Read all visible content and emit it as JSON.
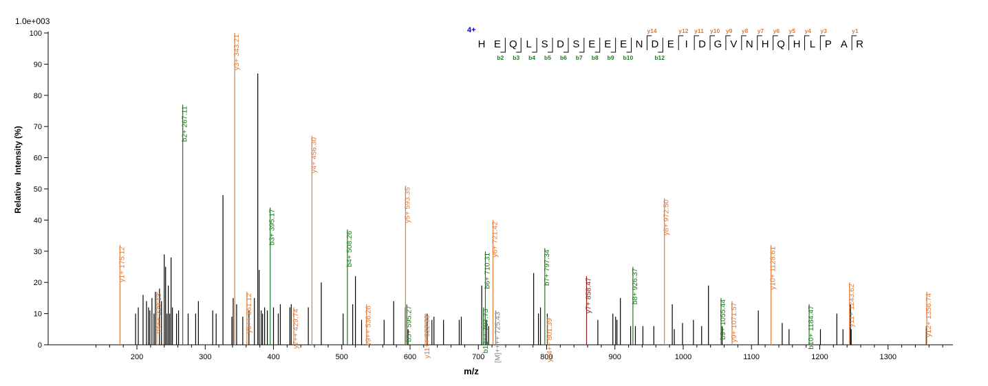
{
  "chart_data": {
    "type": "bar",
    "scale_label": "1.0e+003",
    "xlabel": "m/z",
    "ylabel": "Relative   Intensity (%)",
    "xlim": [
      70,
      1395
    ],
    "ylim": [
      0,
      100
    ],
    "x_ticks": [
      200,
      300,
      400,
      500,
      600,
      700,
      800,
      900,
      1000,
      1100,
      1200,
      1300
    ],
    "y_ticks": [
      0,
      10,
      20,
      30,
      40,
      50,
      60,
      70,
      80,
      90,
      100
    ],
    "colors": {
      "b": "#1a7a1a",
      "y": "#e07b39",
      "other": "#000000",
      "precursor": "#808080",
      "charge": "#0000cc",
      "dark_y": "#8b1a1a"
    },
    "peaks": [
      {
        "x": 198,
        "y": 10
      },
      {
        "x": 202,
        "y": 12
      },
      {
        "x": 209,
        "y": 16
      },
      {
        "x": 214,
        "y": 14
      },
      {
        "x": 217,
        "y": 12
      },
      {
        "x": 219,
        "y": 11
      },
      {
        "x": 222,
        "y": 15
      },
      {
        "x": 225,
        "y": 10
      },
      {
        "x": 227,
        "y": 17
      },
      {
        "x": 233,
        "y": 18
      },
      {
        "x": 236,
        "y": 14
      },
      {
        "x": 240,
        "y": 29
      },
      {
        "x": 242,
        "y": 25
      },
      {
        "x": 244,
        "y": 10
      },
      {
        "x": 246,
        "y": 19
      },
      {
        "x": 248,
        "y": 10
      },
      {
        "x": 250,
        "y": 28
      },
      {
        "x": 252,
        "y": 12
      },
      {
        "x": 258,
        "y": 10
      },
      {
        "x": 261,
        "y": 11
      },
      {
        "x": 275,
        "y": 10
      },
      {
        "x": 286,
        "y": 10
      },
      {
        "x": 290,
        "y": 14
      },
      {
        "x": 311,
        "y": 11
      },
      {
        "x": 316,
        "y": 10
      },
      {
        "x": 326,
        "y": 48
      },
      {
        "x": 339,
        "y": 9
      },
      {
        "x": 341,
        "y": 15
      },
      {
        "x": 346,
        "y": 13
      },
      {
        "x": 355,
        "y": 9
      },
      {
        "x": 364,
        "y": 11
      },
      {
        "x": 372,
        "y": 15
      },
      {
        "x": 377,
        "y": 87
      },
      {
        "x": 379,
        "y": 24
      },
      {
        "x": 382,
        "y": 11
      },
      {
        "x": 384,
        "y": 10
      },
      {
        "x": 387,
        "y": 12
      },
      {
        "x": 391,
        "y": 11
      },
      {
        "x": 400,
        "y": 12
      },
      {
        "x": 407,
        "y": 10
      },
      {
        "x": 410,
        "y": 13
      },
      {
        "x": 424,
        "y": 12
      },
      {
        "x": 426,
        "y": 13
      },
      {
        "x": 451,
        "y": 12
      },
      {
        "x": 470,
        "y": 20
      },
      {
        "x": 502,
        "y": 10
      },
      {
        "x": 516,
        "y": 13
      },
      {
        "x": 520,
        "y": 22
      },
      {
        "x": 529,
        "y": 8
      },
      {
        "x": 562,
        "y": 8
      },
      {
        "x": 576,
        "y": 14
      },
      {
        "x": 593,
        "y": 12
      },
      {
        "x": 597,
        "y": 5
      },
      {
        "x": 625,
        "y": 10
      },
      {
        "x": 632,
        "y": 8
      },
      {
        "x": 635,
        "y": 9
      },
      {
        "x": 649,
        "y": 8
      },
      {
        "x": 672,
        "y": 8
      },
      {
        "x": 675,
        "y": 9
      },
      {
        "x": 705,
        "y": 19
      },
      {
        "x": 712,
        "y": 8
      },
      {
        "x": 715,
        "y": 6
      },
      {
        "x": 781,
        "y": 23
      },
      {
        "x": 788,
        "y": 10
      },
      {
        "x": 791,
        "y": 12
      },
      {
        "x": 801,
        "y": 10
      },
      {
        "x": 875,
        "y": 8
      },
      {
        "x": 897,
        "y": 10
      },
      {
        "x": 901,
        "y": 9
      },
      {
        "x": 903,
        "y": 8
      },
      {
        "x": 908,
        "y": 15
      },
      {
        "x": 923,
        "y": 6
      },
      {
        "x": 930,
        "y": 6
      },
      {
        "x": 941,
        "y": 6
      },
      {
        "x": 957,
        "y": 6
      },
      {
        "x": 984,
        "y": 13
      },
      {
        "x": 987,
        "y": 5
      },
      {
        "x": 999,
        "y": 7
      },
      {
        "x": 1015,
        "y": 8
      },
      {
        "x": 1027,
        "y": 6
      },
      {
        "x": 1037,
        "y": 19
      },
      {
        "x": 1057,
        "y": 6
      },
      {
        "x": 1110,
        "y": 11
      },
      {
        "x": 1145,
        "y": 7
      },
      {
        "x": 1155,
        "y": 5
      },
      {
        "x": 1201,
        "y": 5
      },
      {
        "x": 1225,
        "y": 10
      },
      {
        "x": 1234,
        "y": 5
      },
      {
        "x": 1245,
        "y": 13
      },
      {
        "x": 1246,
        "y": 5
      },
      {
        "x": 1356,
        "y": 6
      }
    ],
    "annotations": [
      {
        "label": "y1+ 175.12",
        "x": 175.12,
        "y": 32,
        "series": "y"
      },
      {
        "label": "y4++ 229.13",
        "x": 229.13,
        "y": 17,
        "series": "y"
      },
      {
        "label": "b2+ 267.11",
        "x": 267.11,
        "y": 77,
        "series": "b"
      },
      {
        "label": "y3+ 343.21",
        "x": 343.21,
        "y": 100,
        "series": "y"
      },
      {
        "label": "y6++ 361.12",
        "x": 361.12,
        "y": 17,
        "series": "y"
      },
      {
        "label": "b3+ 395.17",
        "x": 395.17,
        "y": 44,
        "series": "b"
      },
      {
        "label": "y7++ 429.74",
        "x": 429.74,
        "y": 12,
        "series": "y"
      },
      {
        "label": "y4+ 456.30",
        "x": 456.3,
        "y": 67,
        "series": "y"
      },
      {
        "label": "b4+ 508.26",
        "x": 508.26,
        "y": 37,
        "series": "b"
      },
      {
        "label": "y9++ 536.26",
        "x": 536.26,
        "y": 13,
        "series": "y"
      },
      {
        "label": "y5+ 593.35",
        "x": 593.35,
        "y": 51,
        "series": "y"
      },
      {
        "label": "b5+ 595.27",
        "x": 595.27,
        "y": 13,
        "series": "b"
      },
      {
        "label": "y11++ 622.33",
        "x": 622.33,
        "y": 10,
        "series": "y"
      },
      {
        "label": "b12++ 707.73",
        "x": 707.73,
        "y": 12,
        "series": "b"
      },
      {
        "label": "b6+ 710.31",
        "x": 710.31,
        "y": 30,
        "series": "b"
      },
      {
        "label": "y6+ 721.42",
        "x": 721.42,
        "y": 40,
        "series": "y"
      },
      {
        "label": "[M]++++ 725.43",
        "x": 725.43,
        "y": 11,
        "series": "precursor"
      },
      {
        "label": "b7+ 797.34",
        "x": 797.34,
        "y": 31,
        "series": "b"
      },
      {
        "label": "y14++ 801.39",
        "x": 801.39,
        "y": 9,
        "series": "y"
      },
      {
        "label": "y7+ 858.47",
        "x": 858.47,
        "y": 22,
        "series": "dark_y"
      },
      {
        "label": "b8+ 926.37",
        "x": 926.37,
        "y": 25,
        "series": "b"
      },
      {
        "label": "y8+ 972.50",
        "x": 972.5,
        "y": 47,
        "series": "y"
      },
      {
        "label": "b9+ 1055.44",
        "x": 1055.44,
        "y": 15,
        "series": "b"
      },
      {
        "label": "y9+ 1071.57",
        "x": 1071.57,
        "y": 14,
        "series": "y"
      },
      {
        "label": "y10+ 1128.61",
        "x": 1128.61,
        "y": 32,
        "series": "y"
      },
      {
        "label": "b10+ 1184.47",
        "x": 1184.47,
        "y": 13,
        "series": "b"
      },
      {
        "label": "y11+ 1243.62",
        "x": 1243.62,
        "y": 20,
        "series": "y"
      },
      {
        "label": "y12+ 1356.74",
        "x": 1356.74,
        "y": 17,
        "series": "y"
      }
    ],
    "sequence": {
      "charge": "4+",
      "residues": [
        "H",
        "E",
        "Q",
        "L",
        "S",
        "D",
        "S",
        "E",
        "E",
        "E",
        "N",
        "D",
        "E",
        "I",
        "D",
        "G",
        "V",
        "N",
        "H",
        "Q",
        "H",
        "L",
        "P",
        "A",
        "R"
      ],
      "b_markers": [
        {
          "pos": 2,
          "label": "b2"
        },
        {
          "pos": 3,
          "label": "b3"
        },
        {
          "pos": 4,
          "label": "b4"
        },
        {
          "pos": 5,
          "label": "b5"
        },
        {
          "pos": 6,
          "label": "b6"
        },
        {
          "pos": 7,
          "label": "b7"
        },
        {
          "pos": 8,
          "label": "b8"
        },
        {
          "pos": 9,
          "label": "b9"
        },
        {
          "pos": 10,
          "label": "b10"
        },
        {
          "pos": 12,
          "label": "b12"
        }
      ],
      "y_markers": [
        {
          "pos": 11,
          "label": "y14"
        },
        {
          "pos": 13,
          "label": "y12"
        },
        {
          "pos": 14,
          "label": "y11"
        },
        {
          "pos": 15,
          "label": "y10"
        },
        {
          "pos": 16,
          "label": "y9"
        },
        {
          "pos": 17,
          "label": "y8"
        },
        {
          "pos": 18,
          "label": "y7"
        },
        {
          "pos": 19,
          "label": "y6"
        },
        {
          "pos": 20,
          "label": "y5"
        },
        {
          "pos": 21,
          "label": "y4"
        },
        {
          "pos": 22,
          "label": "y3"
        },
        {
          "pos": 24,
          "label": "y1"
        }
      ]
    }
  }
}
